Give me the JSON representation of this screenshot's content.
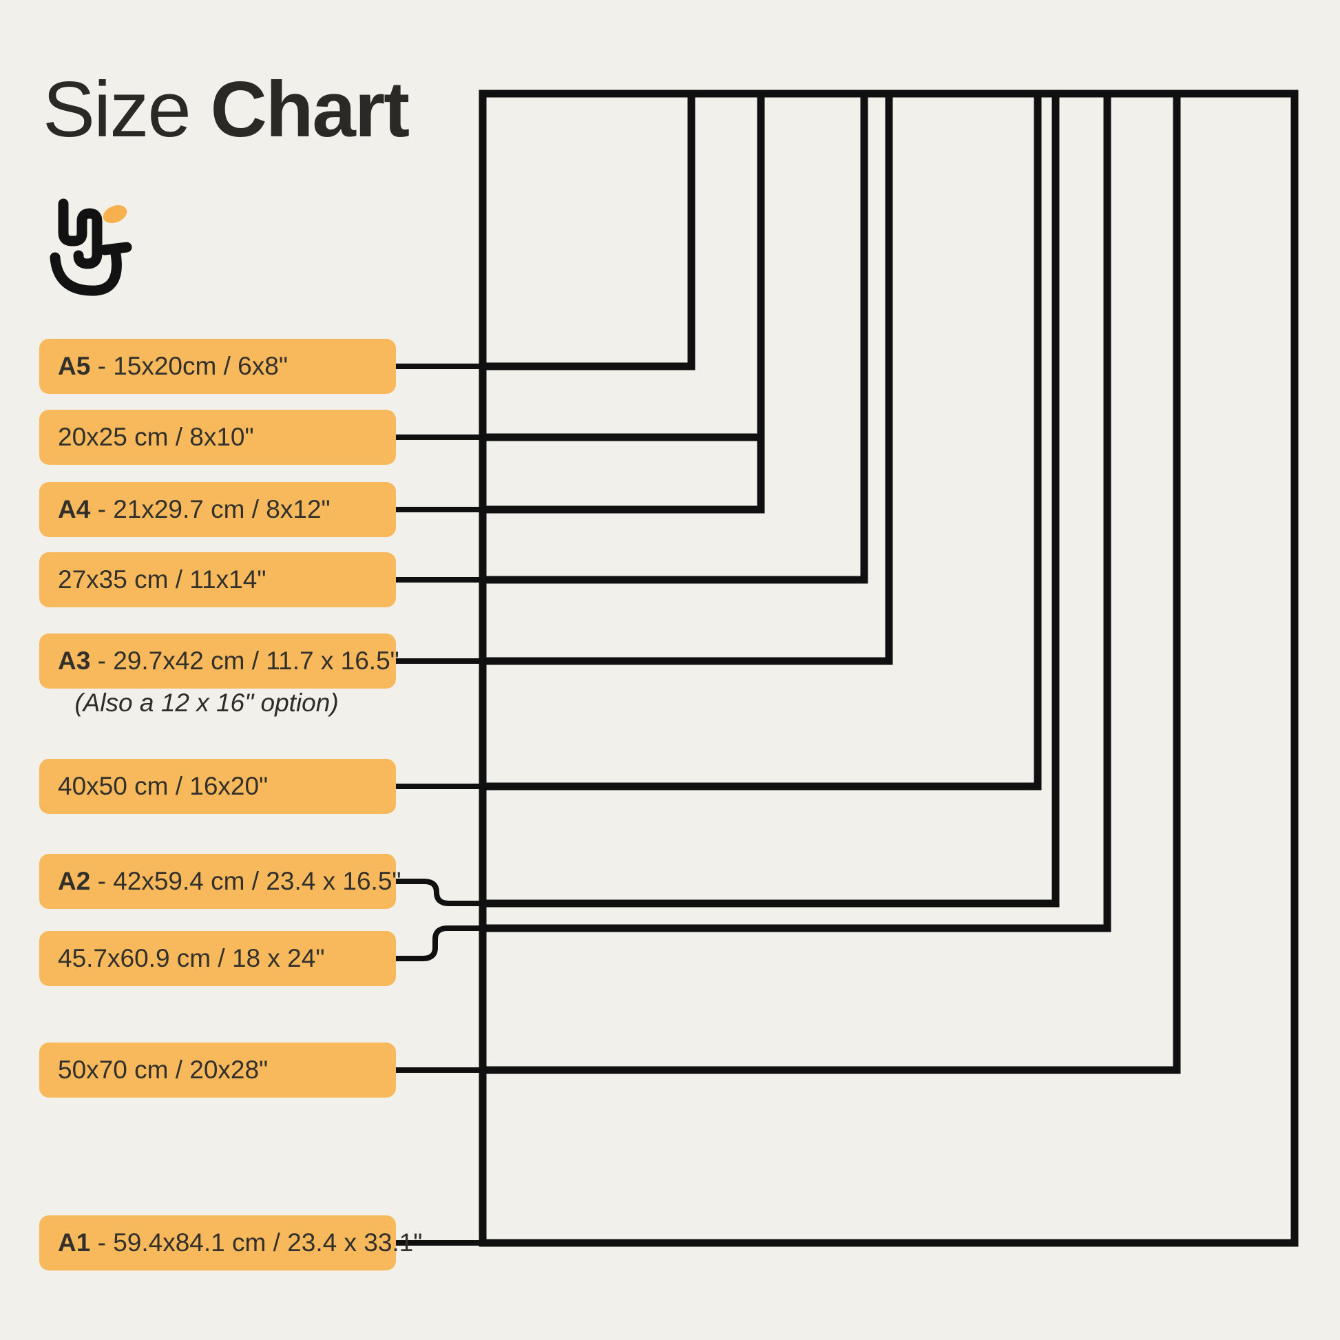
{
  "title": {
    "word_regular": "Size",
    "word_bold": "Chart"
  },
  "logo": {
    "name": "smiley-hand-brand-logo",
    "accent_color": "#F6B14E",
    "ink_color": "#121212"
  },
  "separator": " - ",
  "a3_note": "(Also a 12 x 16\" option)",
  "colors": {
    "background": "#F2F0EA",
    "label_background": "#F8B95D",
    "label_text": "#32302B",
    "title_text": "#2B2926",
    "line": "#101010"
  },
  "sizes": [
    {
      "code": "A5",
      "text": "15x20cm / 6x8\"",
      "cm": "15x20cm",
      "inches": "6x8\""
    },
    {
      "code": null,
      "text": "20x25 cm / 8x10\"",
      "cm": "20x25 cm",
      "inches": "8x10\""
    },
    {
      "code": "A4",
      "text": "21x29.7 cm / 8x12\"",
      "cm": "21x29.7 cm",
      "inches": "8x12\""
    },
    {
      "code": null,
      "text": "27x35 cm / 11x14\"",
      "cm": "27x35 cm",
      "inches": "11x14\""
    },
    {
      "code": "A3",
      "text": "29.7x42 cm / 11.7 x 16.5\"",
      "cm": "29.7x42 cm",
      "inches": "11.7 x 16.5\""
    },
    {
      "code": null,
      "text": "40x50 cm / 16x20\"",
      "cm": "40x50 cm",
      "inches": "16x20\""
    },
    {
      "code": "A2",
      "text": "42x59.4 cm / 23.4 x 16.5\"",
      "cm": "42x59.4 cm",
      "inches": "23.4 x 16.5\""
    },
    {
      "code": null,
      "text": "45.7x60.9 cm / 18 x 24\"",
      "cm": "45.7x60.9 cm",
      "inches": "18 x 24\""
    },
    {
      "code": null,
      "text": "50x70 cm / 20x28\"",
      "cm": "50x70 cm",
      "inches": "20x28\""
    },
    {
      "code": "A1",
      "text": "59.4x84.1 cm / 23.4 x 33.1\"",
      "cm": "59.4x84.1 cm",
      "inches": "23.4 x 33.1\""
    }
  ]
}
